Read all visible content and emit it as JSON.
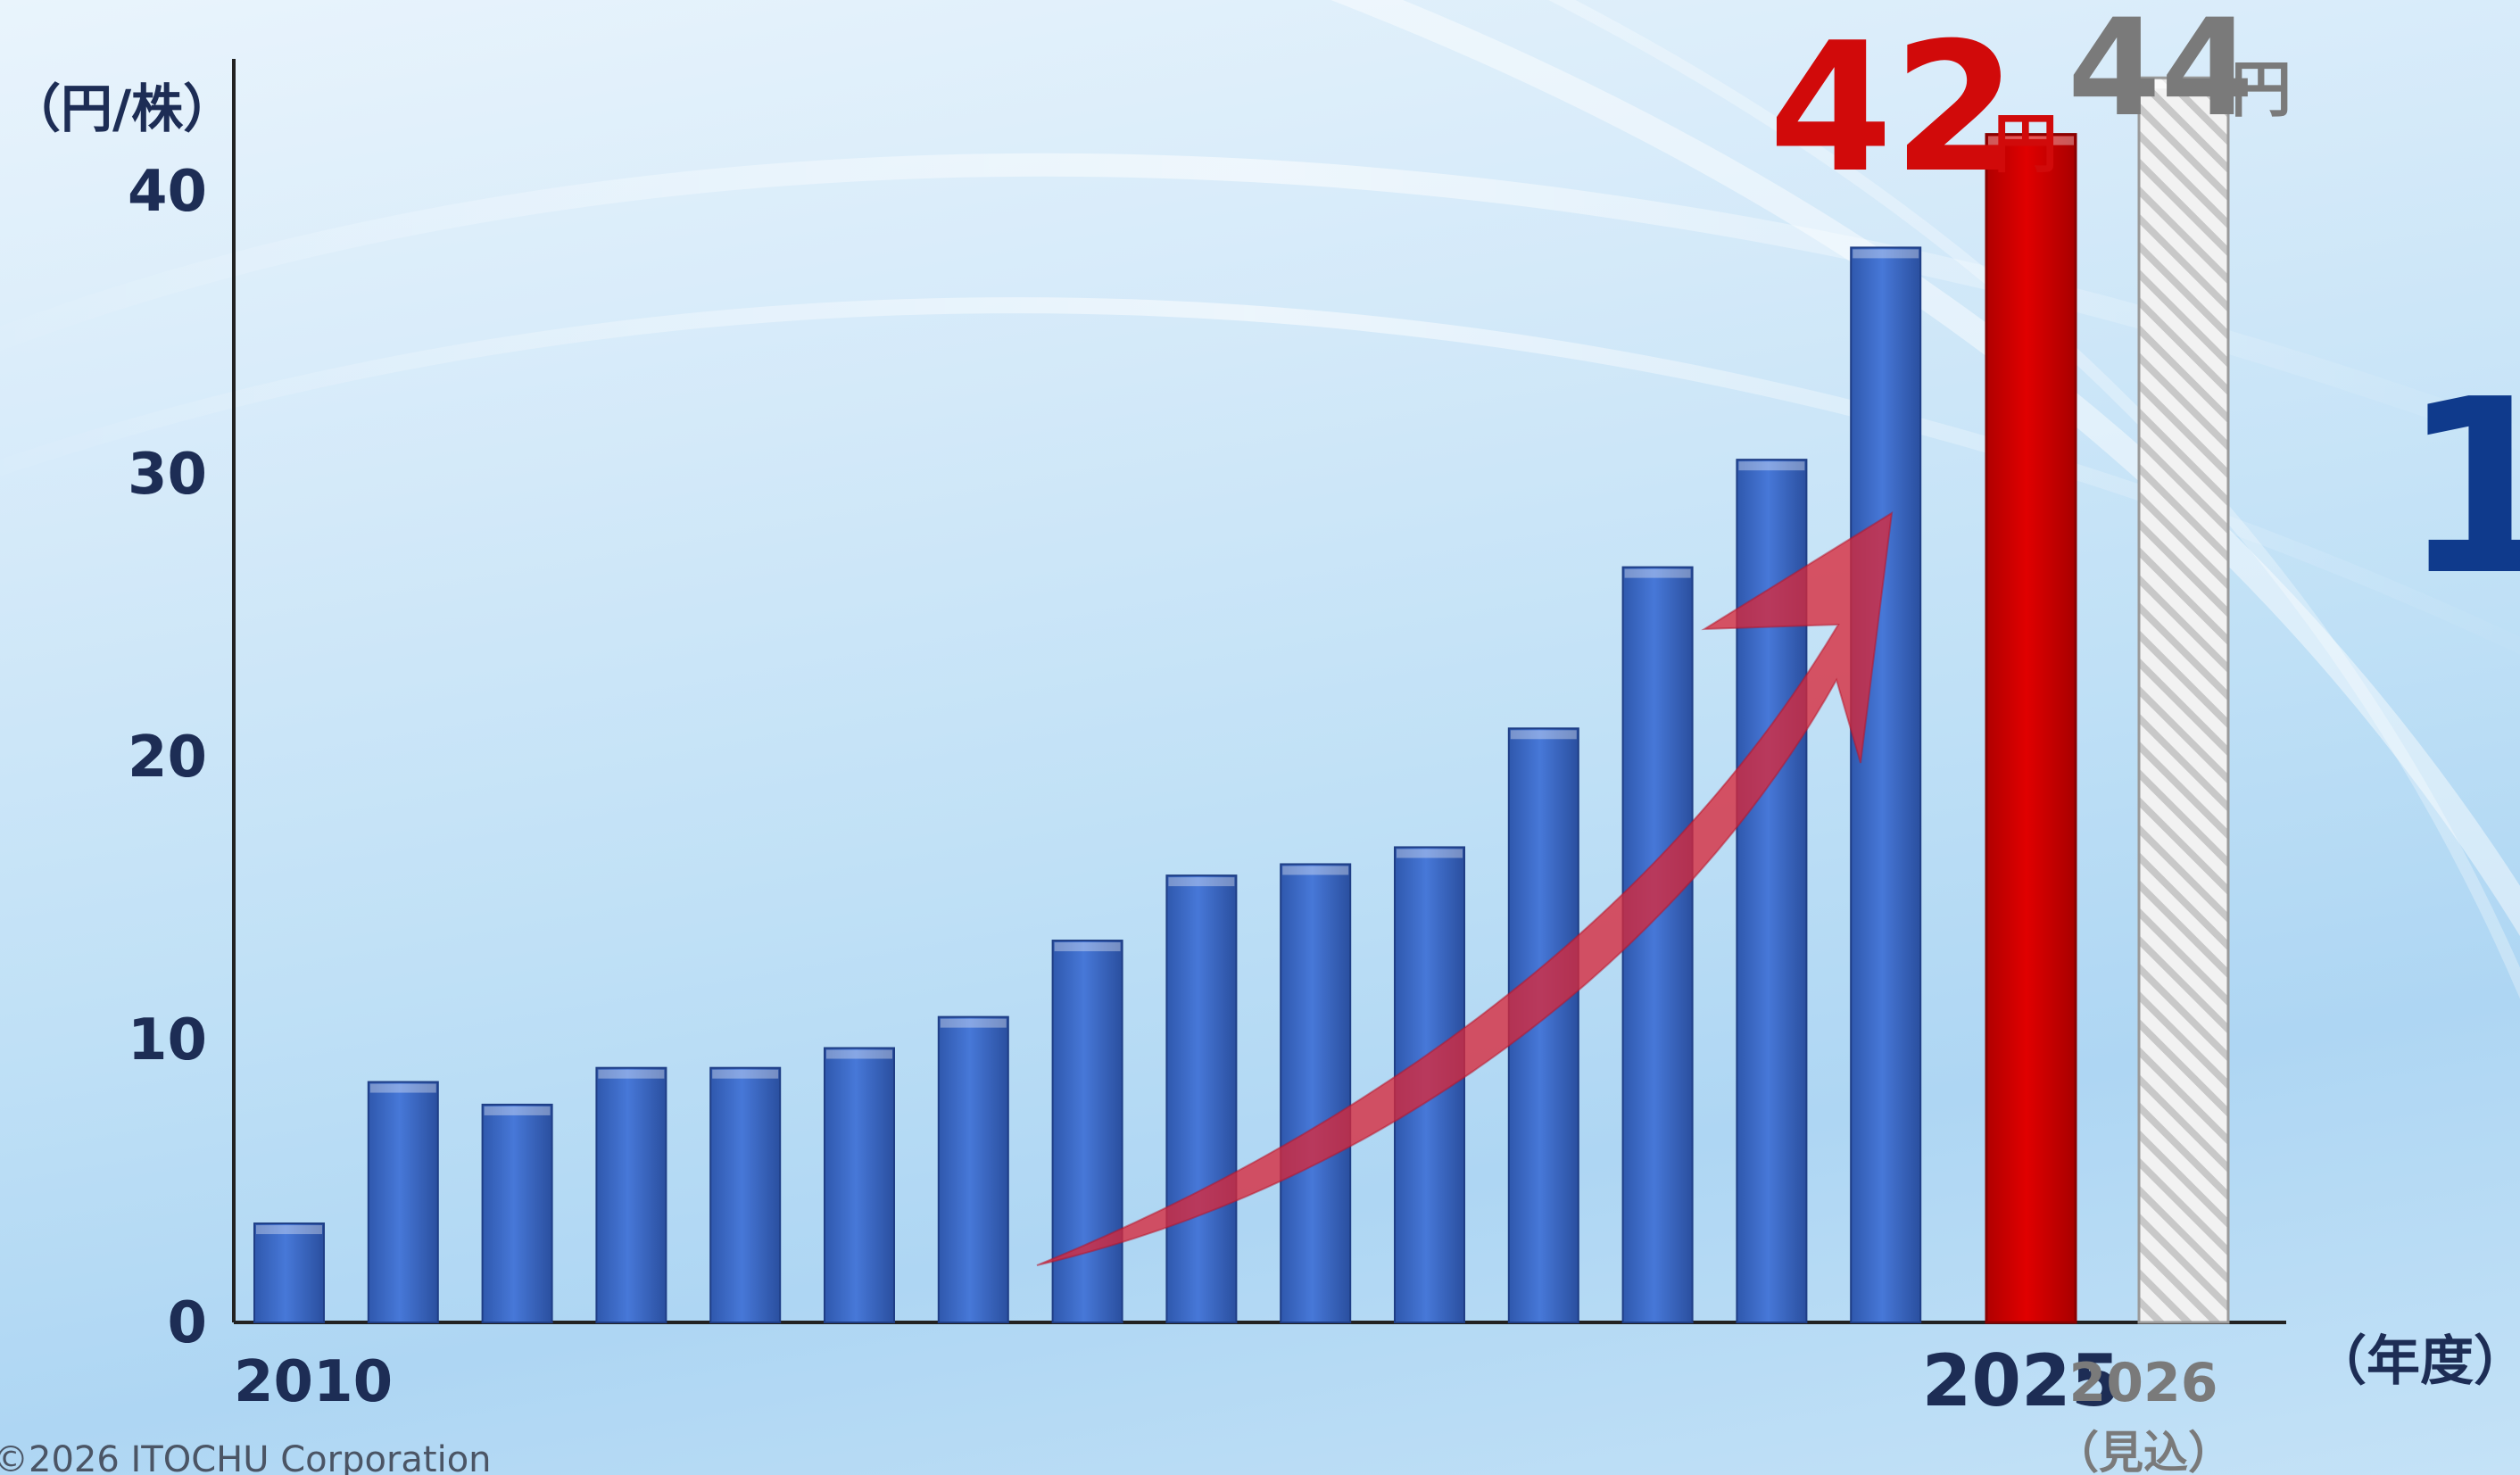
{
  "chart_data": {
    "type": "bar",
    "unit_label": "（円/株）",
    "x_unit_label": "（年度）",
    "ylim": [
      0,
      45
    ],
    "y_ticks": [
      0,
      10,
      20,
      30,
      40
    ],
    "grid": false,
    "x": [
      2010,
      2011,
      2012,
      2013,
      2014,
      2015,
      2016,
      2017,
      2018,
      2019,
      2020,
      2021,
      2022,
      2023,
      2024,
      2025,
      2026
    ],
    "x_tick_labels": [
      "2010",
      "",
      "",
      "",
      "",
      "",
      "",
      "",
      "",
      "",
      "",
      "",
      "",
      "",
      "",
      "2025",
      "2026"
    ],
    "x_forecast_note": "（見込）",
    "values": [
      3.5,
      8.5,
      7.7,
      9.0,
      9.0,
      9.7,
      10.8,
      13.5,
      15.8,
      16.2,
      16.8,
      21.0,
      26.7,
      30.5,
      38.0,
      42,
      44
    ],
    "bar_styles": [
      "actual",
      "actual",
      "actual",
      "actual",
      "actual",
      "actual",
      "actual",
      "actual",
      "actual",
      "actual",
      "actual",
      "actual",
      "actual",
      "actual",
      "actual",
      "highlight",
      "forecast"
    ],
    "callouts": [
      {
        "value": "42",
        "unit": "円",
        "color": "#d10a0a"
      },
      {
        "value": "44",
        "unit": "円",
        "color": "#7a7a7a"
      }
    ],
    "colors": {
      "actual": "#3f6fcc",
      "highlight": "#d40000",
      "forecast": "#d9d9d9",
      "arrow": "#d8283a",
      "axis_text": "#1d2d55",
      "forecast_text": "#7a7a7a"
    }
  },
  "side_text": "1",
  "copyright": "©2026 ITOCHU Corporation"
}
